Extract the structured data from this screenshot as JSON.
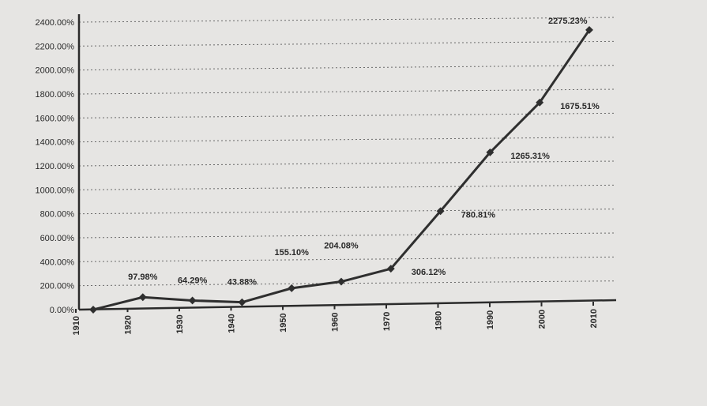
{
  "chart_data": {
    "type": "line",
    "title": "",
    "xlabel": "",
    "ylabel": "",
    "x": [
      "1910",
      "1920",
      "1930",
      "1940",
      "1950",
      "1960",
      "1970",
      "1980",
      "1990",
      "2000",
      "2010"
    ],
    "y_ticks": [
      "0.00%",
      "200.00%",
      "400.00%",
      "600.00%",
      "800.00%",
      "1000.00%",
      "1200.00%",
      "1400.00%",
      "1600.00%",
      "1800.00%",
      "2000.00%",
      "2200.00%",
      "2400.00%"
    ],
    "ylim": [
      0,
      2400
    ],
    "grid": true,
    "series": [
      {
        "values": [
          0,
          97.98,
          64.29,
          43.88,
          155.1,
          204.08,
          306.12,
          780.81,
          1265.31,
          1675.51,
          2275.23
        ],
        "labels": [
          "",
          "97.98%",
          "64.29%",
          "43.88%",
          "155.10%",
          "204.08%",
          "306.12%",
          "780.81%",
          "1265.31%",
          "1675.51%",
          "2275.23%"
        ]
      }
    ],
    "colors": {
      "line": "#2f2f2f",
      "background": "#e6e5e3",
      "grid": "#6a6a6a"
    }
  }
}
